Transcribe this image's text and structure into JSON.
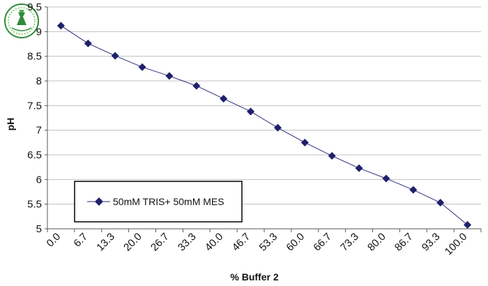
{
  "chart_data": {
    "type": "line",
    "title": "",
    "xlabel": "% Buffer 2",
    "ylabel": "pH",
    "categories": [
      "0.0",
      "6.7",
      "13.3",
      "20.0",
      "26.7",
      "33.3",
      "40.0",
      "46.7",
      "53.3",
      "60.0",
      "66.7",
      "73.3",
      "80.0",
      "86.7",
      "93.3",
      "100.0"
    ],
    "series": [
      {
        "name": "50mM TRIS+ 50mM MES",
        "values": [
          9.12,
          8.76,
          8.51,
          8.28,
          8.1,
          7.9,
          7.64,
          7.38,
          7.05,
          6.75,
          6.48,
          6.23,
          6.02,
          5.79,
          5.53,
          5.08
        ]
      }
    ],
    "ylim": [
      5,
      9.5
    ],
    "yticks": [
      5,
      5.5,
      6,
      6.5,
      7,
      7.5,
      8,
      8.5,
      9,
      9.5
    ],
    "grid": "horizontal",
    "legend_position": "lower-left",
    "colors": {
      "series": "#2a2a7a",
      "marker": "#1f1f6b",
      "grid": "#c0c0c0",
      "axis": "#555555"
    }
  }
}
